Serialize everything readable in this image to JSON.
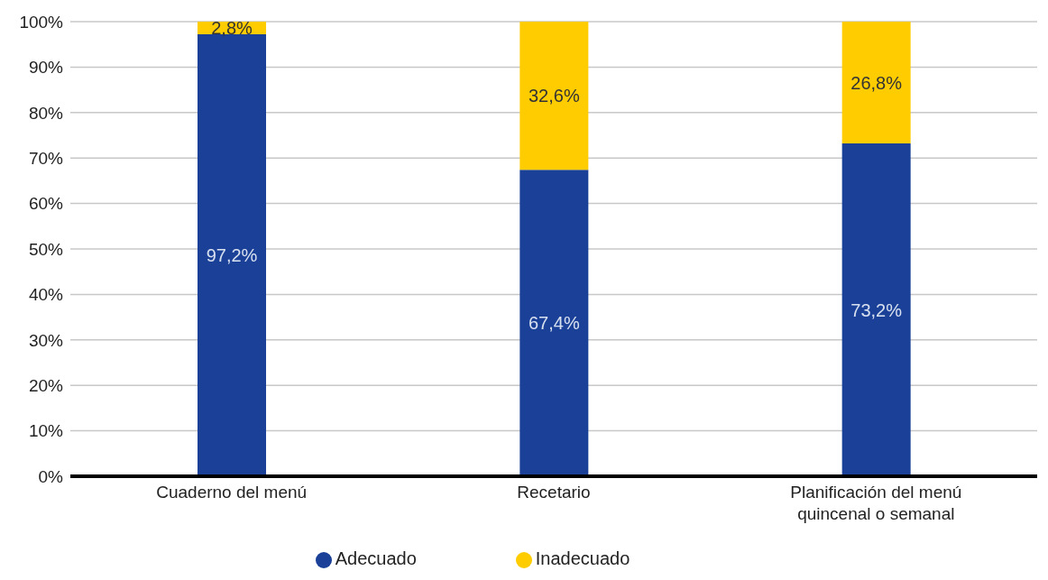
{
  "chart_data": {
    "type": "bar",
    "stacked": true,
    "categories": [
      "Cuaderno del menú",
      "Recetario",
      "Planificación del menú quincenal o semanal"
    ],
    "series": [
      {
        "name": "Adecuado",
        "color": "#1a4197",
        "values": [
          97.2,
          67.4,
          73.2
        ],
        "value_labels": [
          "97,2%",
          "67,4%",
          "73,2%"
        ]
      },
      {
        "name": "Inadecuado",
        "color": "#ffcc00",
        "values": [
          2.8,
          32.6,
          26.8
        ],
        "value_labels": [
          "2,8%",
          "32,6%",
          "26,8%"
        ]
      }
    ],
    "ylim": [
      0,
      100
    ],
    "yticks": [
      {
        "value": 0,
        "label": "0%"
      },
      {
        "value": 10,
        "label": "10%"
      },
      {
        "value": 20,
        "label": "20%"
      },
      {
        "value": 30,
        "label": "30%"
      },
      {
        "value": 40,
        "label": "40%"
      },
      {
        "value": 50,
        "label": "50%"
      },
      {
        "value": 60,
        "label": "60%"
      },
      {
        "value": 70,
        "label": "70%"
      },
      {
        "value": 80,
        "label": "80%"
      },
      {
        "value": 90,
        "label": "90%"
      },
      {
        "value": 100,
        "label": "100%"
      }
    ],
    "grid": "y",
    "legend": "bottom"
  }
}
